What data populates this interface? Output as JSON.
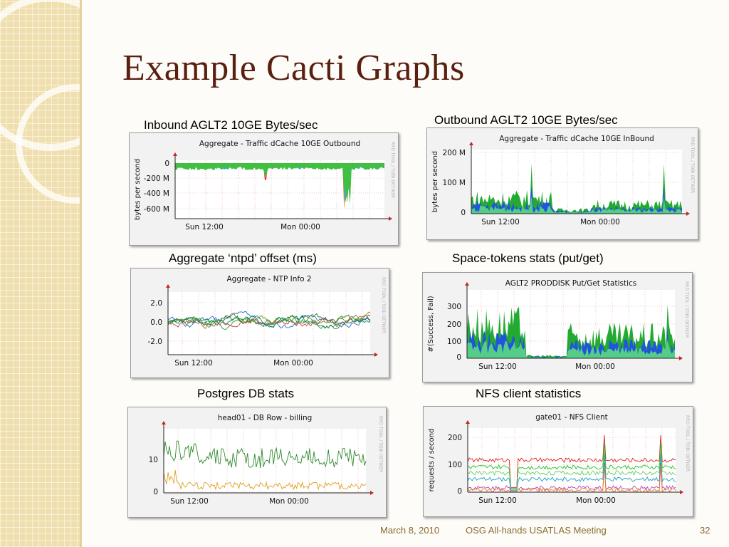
{
  "slide": {
    "title": "Example Cacti Graphs",
    "footer": {
      "date": "March 8, 2010",
      "event": "OSG All-hands USATLAS Meeting",
      "page": "32"
    },
    "colors": {
      "title": "#5a1f10",
      "strip": "#f0dfae",
      "footer": "#8a6b2a"
    }
  },
  "chart_data": [
    {
      "id": "g1",
      "type": "area",
      "caption": "Inbound  AGLT2 10GE Bytes/sec",
      "title": "Aggregate - Traffic dCache 10GE Outbound",
      "ylabel": "bytes per second",
      "yticks": [
        "0",
        "-200 M",
        "-400 M",
        "-600 M"
      ],
      "xticks": [
        "Sun 12:00",
        "Mon 00:00"
      ],
      "side_text": "RRD TOOL / TOBI OETIKER"
    },
    {
      "id": "g2",
      "type": "area",
      "caption": "Outbound  AGLT2 10GE Bytes/sec",
      "title": "Aggregate - Traffic dCache 10GE InBound",
      "ylabel": "bytes per second",
      "yticks": [
        "200 M",
        "100 M",
        "0"
      ],
      "xticks": [
        "Sun 12:00",
        "Mon 00:00"
      ],
      "side_text": "RRD TOOL / TOBI OETIKER"
    },
    {
      "id": "g3",
      "type": "line",
      "caption": "Aggregate ‘ntpd’ offset (ms)",
      "title": "Aggregate - NTP Info 2",
      "ylabel": "",
      "yticks": [
        "2.0",
        "0.0",
        "-2.0"
      ],
      "xticks": [
        "Sun 12:00",
        "Mon 00:00"
      ],
      "side_text": "RRD TOOL / TOBI OETIKER"
    },
    {
      "id": "g4",
      "type": "area",
      "caption": "Space-tokens stats (put/get)",
      "title": "AGLT2 PRODDISK Put/Get Statistics",
      "ylabel": "#(Success, Fail)",
      "yticks": [
        "300",
        "200",
        "100",
        "0"
      ],
      "xticks": [
        "Sun 12:00",
        "Mon 00:00"
      ],
      "side_text": "RRD TOOL / TOBI OETIKER"
    },
    {
      "id": "g5",
      "type": "line",
      "caption": "Postgres DB stats",
      "title": "head01 - DB Row - billing",
      "ylabel": "",
      "yticks": [
        "10",
        "0"
      ],
      "xticks": [
        "Sun 12:00",
        "Mon 00:00"
      ],
      "side_text": "RRD TOOL / TOBI OETIKER"
    },
    {
      "id": "g6",
      "type": "line",
      "caption": "NFS client statistics",
      "title": "gate01 - NFS Client",
      "ylabel": "requests / second",
      "yticks": [
        "200",
        "100",
        "0"
      ],
      "xticks": [
        "Sun 12:00",
        "Mon 00:00"
      ],
      "side_text": "RRD TOOL / TOBI OETIKER"
    }
  ]
}
